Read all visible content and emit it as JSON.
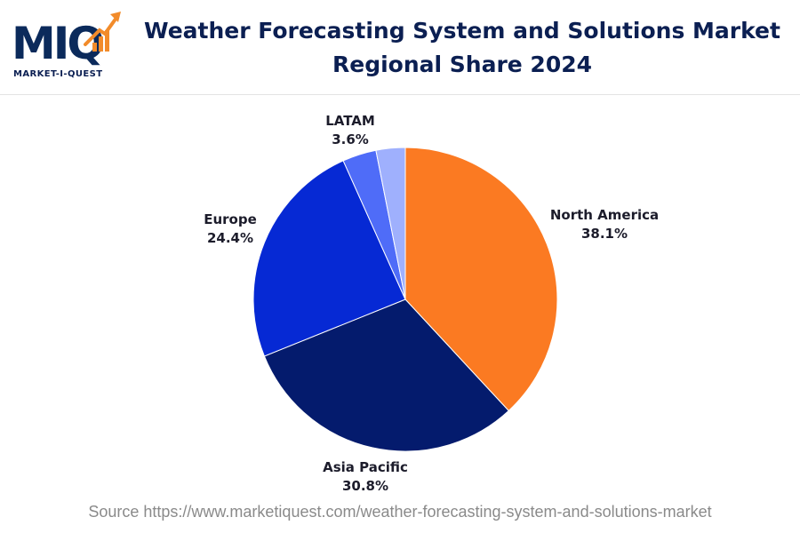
{
  "logo": {
    "wordmark": "MIQ",
    "caption": "MARKET-I-QUEST",
    "colors": {
      "navy": "#0b2a5b",
      "accent": "#f28b2a"
    }
  },
  "title": {
    "line1": "Weather Forecasting System and Solutions Market",
    "line2": "Regional Share 2024"
  },
  "chart_data": {
    "type": "pie",
    "title": "Weather Forecasting System and Solutions Market Regional Share 2024",
    "unit": "%",
    "slices": [
      {
        "label": "North America",
        "value": 38.1,
        "display": "38.1%",
        "color": "#fb7a22"
      },
      {
        "label": "Asia Pacific",
        "value": 30.8,
        "display": "30.8%",
        "color": "#041b6d"
      },
      {
        "label": "Europe",
        "value": 24.4,
        "display": "24.4%",
        "color": "#0629d4"
      },
      {
        "label": "LATAM",
        "value": 3.6,
        "display": "3.6%",
        "color": "#4f6cf8"
      },
      {
        "label": "",
        "value": 3.1,
        "display": "",
        "color": "#9fb0fd"
      }
    ],
    "start_angle": "12 o'clock",
    "direction": "clockwise",
    "legend": "none"
  },
  "source": "Source https://www.marketiquest.com/weather-forecasting-system-and-solutions-market"
}
